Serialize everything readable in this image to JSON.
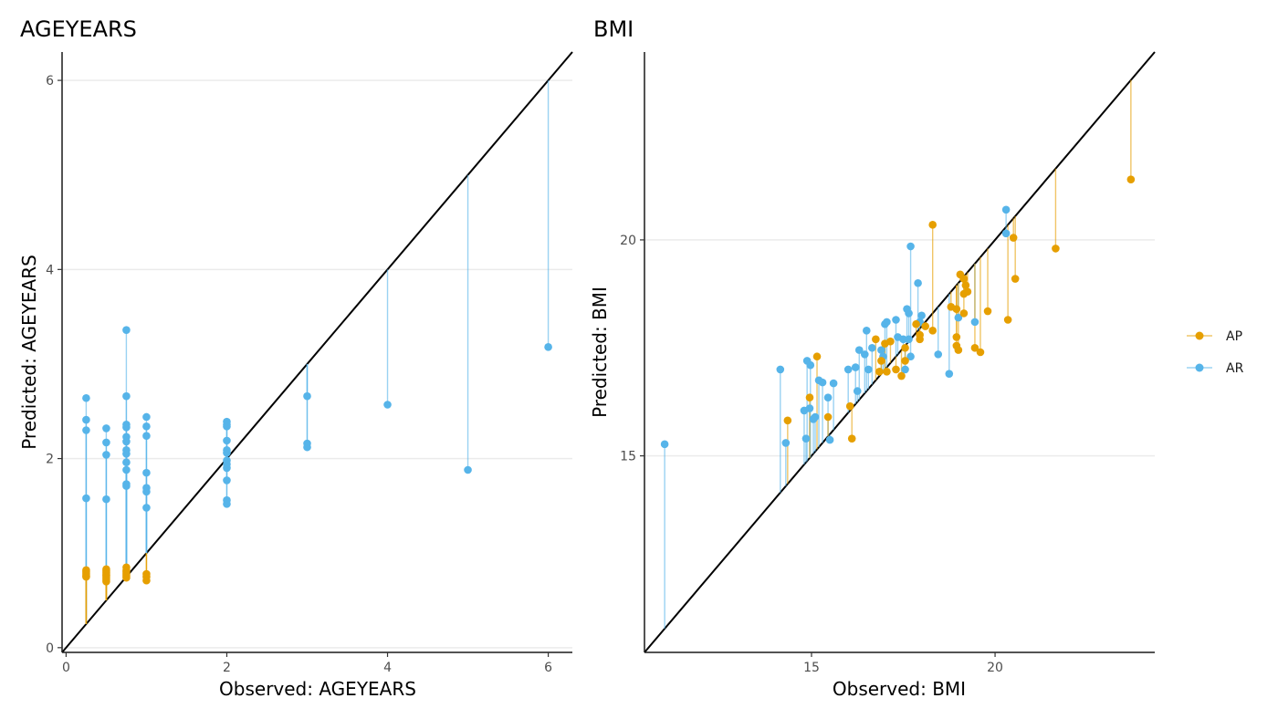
{
  "chart_data": [
    {
      "type": "scatter",
      "title": "AGEYEARS",
      "xlabel": "Observed: AGEYEARS",
      "ylabel": "Predicted: AGEYEARS",
      "xlim": [
        -0.05,
        6.3
      ],
      "ylim": [
        -0.05,
        6.3
      ],
      "x_ticks": [
        0,
        2,
        4,
        6
      ],
      "y_ticks": [
        0,
        2,
        4,
        6
      ],
      "x_tick_labels": [
        "0",
        "2",
        "4",
        "6"
      ],
      "y_tick_labels": [
        "0",
        "2",
        "4",
        "6"
      ],
      "grid": "horizontal major",
      "reference_line": "identity (y = x)",
      "segments": "vertical line from each point to identity line",
      "series": [
        {
          "name": "AR",
          "color": "#56B4E9",
          "points": [
            [
              0.25,
              2.64
            ],
            [
              0.25,
              2.41
            ],
            [
              0.25,
              2.3
            ],
            [
              0.25,
              1.58
            ],
            [
              0.5,
              2.32
            ],
            [
              0.5,
              2.17
            ],
            [
              0.5,
              2.04
            ],
            [
              0.5,
              1.57
            ],
            [
              0.75,
              3.36
            ],
            [
              0.75,
              2.66
            ],
            [
              0.75,
              2.36
            ],
            [
              0.75,
              2.33
            ],
            [
              0.75,
              2.23
            ],
            [
              0.75,
              2.18
            ],
            [
              0.75,
              2.09
            ],
            [
              0.75,
              2.05
            ],
            [
              0.75,
              1.96
            ],
            [
              0.75,
              1.88
            ],
            [
              0.75,
              1.73
            ],
            [
              0.75,
              1.71
            ],
            [
              1,
              2.44
            ],
            [
              1,
              2.34
            ],
            [
              1,
              2.24
            ],
            [
              1,
              1.85
            ],
            [
              1,
              1.69
            ],
            [
              1,
              1.65
            ],
            [
              1,
              1.48
            ],
            [
              2,
              2.39
            ],
            [
              2,
              2.36
            ],
            [
              2,
              2.34
            ],
            [
              2,
              2.19
            ],
            [
              2,
              2.09
            ],
            [
              2,
              2.06
            ],
            [
              2,
              1.98
            ],
            [
              2,
              1.94
            ],
            [
              2,
              1.9
            ],
            [
              2,
              1.77
            ],
            [
              2,
              1.56
            ],
            [
              2,
              1.52
            ],
            [
              3,
              2.66
            ],
            [
              3,
              2.16
            ],
            [
              3,
              2.12
            ],
            [
              4,
              2.57
            ],
            [
              5,
              1.88
            ],
            [
              6,
              3.18
            ]
          ]
        },
        {
          "name": "AP",
          "color": "#E69F00",
          "points": [
            [
              0.25,
              0.82
            ],
            [
              0.25,
              0.8
            ],
            [
              0.25,
              0.78
            ],
            [
              0.25,
              0.76
            ],
            [
              0.25,
              0.75
            ],
            [
              0.5,
              0.83
            ],
            [
              0.5,
              0.81
            ],
            [
              0.5,
              0.79
            ],
            [
              0.5,
              0.77
            ],
            [
              0.5,
              0.76
            ],
            [
              0.5,
              0.74
            ],
            [
              0.5,
              0.72
            ],
            [
              0.5,
              0.7
            ],
            [
              0.75,
              0.85
            ],
            [
              0.75,
              0.82
            ],
            [
              0.75,
              0.8
            ],
            [
              0.75,
              0.78
            ],
            [
              0.75,
              0.76
            ],
            [
              0.75,
              0.74
            ],
            [
              1,
              0.78
            ],
            [
              1,
              0.75
            ],
            [
              1,
              0.71
            ]
          ]
        }
      ]
    },
    {
      "type": "scatter",
      "title": "BMI",
      "xlabel": "Observed: BMI",
      "ylabel": "Predicted: BMI",
      "xlim": [
        10.45,
        24.35
      ],
      "ylim": [
        10.45,
        24.35
      ],
      "x_ticks": [
        15,
        20
      ],
      "y_ticks": [
        15,
        20
      ],
      "x_tick_labels": [
        "15",
        "20"
      ],
      "y_tick_labels": [
        "15",
        "20"
      ],
      "grid": "horizontal major",
      "reference_line": "identity (y = x)",
      "segments": "vertical line from each point to identity line",
      "series": [
        {
          "name": "AR",
          "color": "#56B4E9",
          "points": [
            [
              11.0,
              15.27
            ],
            [
              14.15,
              17.0
            ],
            [
              14.3,
              15.3
            ],
            [
              14.8,
              16.05
            ],
            [
              14.85,
              15.4
            ],
            [
              14.88,
              17.2
            ],
            [
              14.95,
              16.1
            ],
            [
              14.97,
              17.1
            ],
            [
              15.05,
              15.85
            ],
            [
              15.1,
              15.9
            ],
            [
              15.2,
              16.75
            ],
            [
              15.3,
              16.7
            ],
            [
              15.45,
              16.35
            ],
            [
              15.5,
              15.37
            ],
            [
              15.6,
              16.68
            ],
            [
              16.0,
              17.0
            ],
            [
              16.2,
              17.05
            ],
            [
              16.25,
              16.5
            ],
            [
              16.3,
              17.45
            ],
            [
              16.45,
              17.35
            ],
            [
              16.5,
              17.9
            ],
            [
              16.55,
              17.0
            ],
            [
              16.65,
              17.5
            ],
            [
              16.9,
              17.45
            ],
            [
              16.95,
              17.3
            ],
            [
              17.0,
              18.05
            ],
            [
              17.05,
              18.1
            ],
            [
              17.3,
              18.15
            ],
            [
              17.35,
              17.75
            ],
            [
              17.5,
              17.7
            ],
            [
              17.55,
              17.0
            ],
            [
              17.6,
              18.4
            ],
            [
              17.65,
              18.3
            ],
            [
              17.65,
              17.7
            ],
            [
              17.7,
              17.3
            ],
            [
              17.7,
              19.85
            ],
            [
              17.9,
              19.0
            ],
            [
              17.95,
              18.1
            ],
            [
              18.0,
              18.25
            ],
            [
              18.45,
              17.35
            ],
            [
              18.75,
              16.9
            ],
            [
              19.0,
              18.2
            ],
            [
              19.45,
              18.1
            ],
            [
              20.3,
              20.7
            ],
            [
              20.3,
              20.15
            ]
          ]
        },
        {
          "name": "AP",
          "color": "#E69F00",
          "points": [
            [
              14.35,
              15.82
            ],
            [
              14.95,
              16.35
            ],
            [
              15.15,
              17.3
            ],
            [
              15.45,
              15.9
            ],
            [
              16.05,
              16.15
            ],
            [
              16.1,
              15.4
            ],
            [
              16.75,
              17.7
            ],
            [
              16.85,
              16.95
            ],
            [
              16.9,
              17.2
            ],
            [
              17.0,
              17.6
            ],
            [
              17.05,
              16.95
            ],
            [
              17.15,
              17.65
            ],
            [
              17.3,
              17.0
            ],
            [
              17.45,
              16.85
            ],
            [
              17.55,
              17.5
            ],
            [
              17.55,
              17.2
            ],
            [
              17.85,
              18.05
            ],
            [
              17.95,
              17.8
            ],
            [
              17.95,
              17.7
            ],
            [
              18.1,
              18.0
            ],
            [
              18.3,
              20.35
            ],
            [
              18.3,
              17.9
            ],
            [
              18.8,
              18.45
            ],
            [
              18.95,
              18.4
            ],
            [
              18.95,
              17.75
            ],
            [
              18.95,
              17.55
            ],
            [
              19.0,
              17.45
            ],
            [
              19.05,
              19.2
            ],
            [
              19.15,
              19.1
            ],
            [
              19.15,
              18.75
            ],
            [
              19.15,
              18.3
            ],
            [
              19.2,
              18.95
            ],
            [
              19.25,
              18.8
            ],
            [
              19.45,
              17.5
            ],
            [
              19.6,
              17.4
            ],
            [
              19.8,
              18.35
            ],
            [
              20.35,
              18.15
            ],
            [
              20.5,
              20.05
            ],
            [
              20.55,
              19.1
            ],
            [
              21.65,
              19.8
            ],
            [
              23.7,
              21.4
            ]
          ]
        }
      ]
    }
  ],
  "legend": {
    "items": [
      {
        "label": "AP",
        "color": "#E69F00"
      },
      {
        "label": "AR",
        "color": "#56B4E9"
      }
    ]
  }
}
